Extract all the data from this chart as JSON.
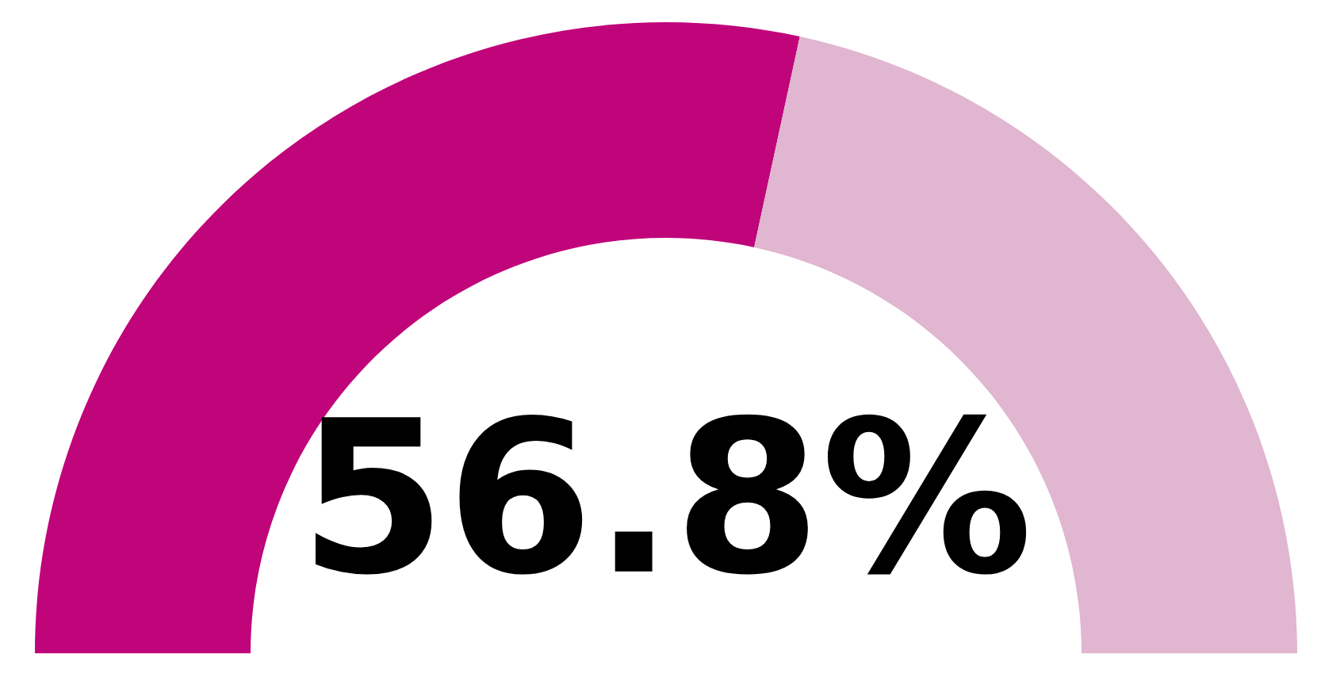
{
  "chart_data": {
    "type": "donut",
    "categories": [
      null,
      null
    ],
    "values": [
      56.8,
      43.2
    ],
    "colors": [
      "#c0047a",
      "#e0b6d0"
    ],
    "annotations": [
      "56.8%"
    ]
  }
}
